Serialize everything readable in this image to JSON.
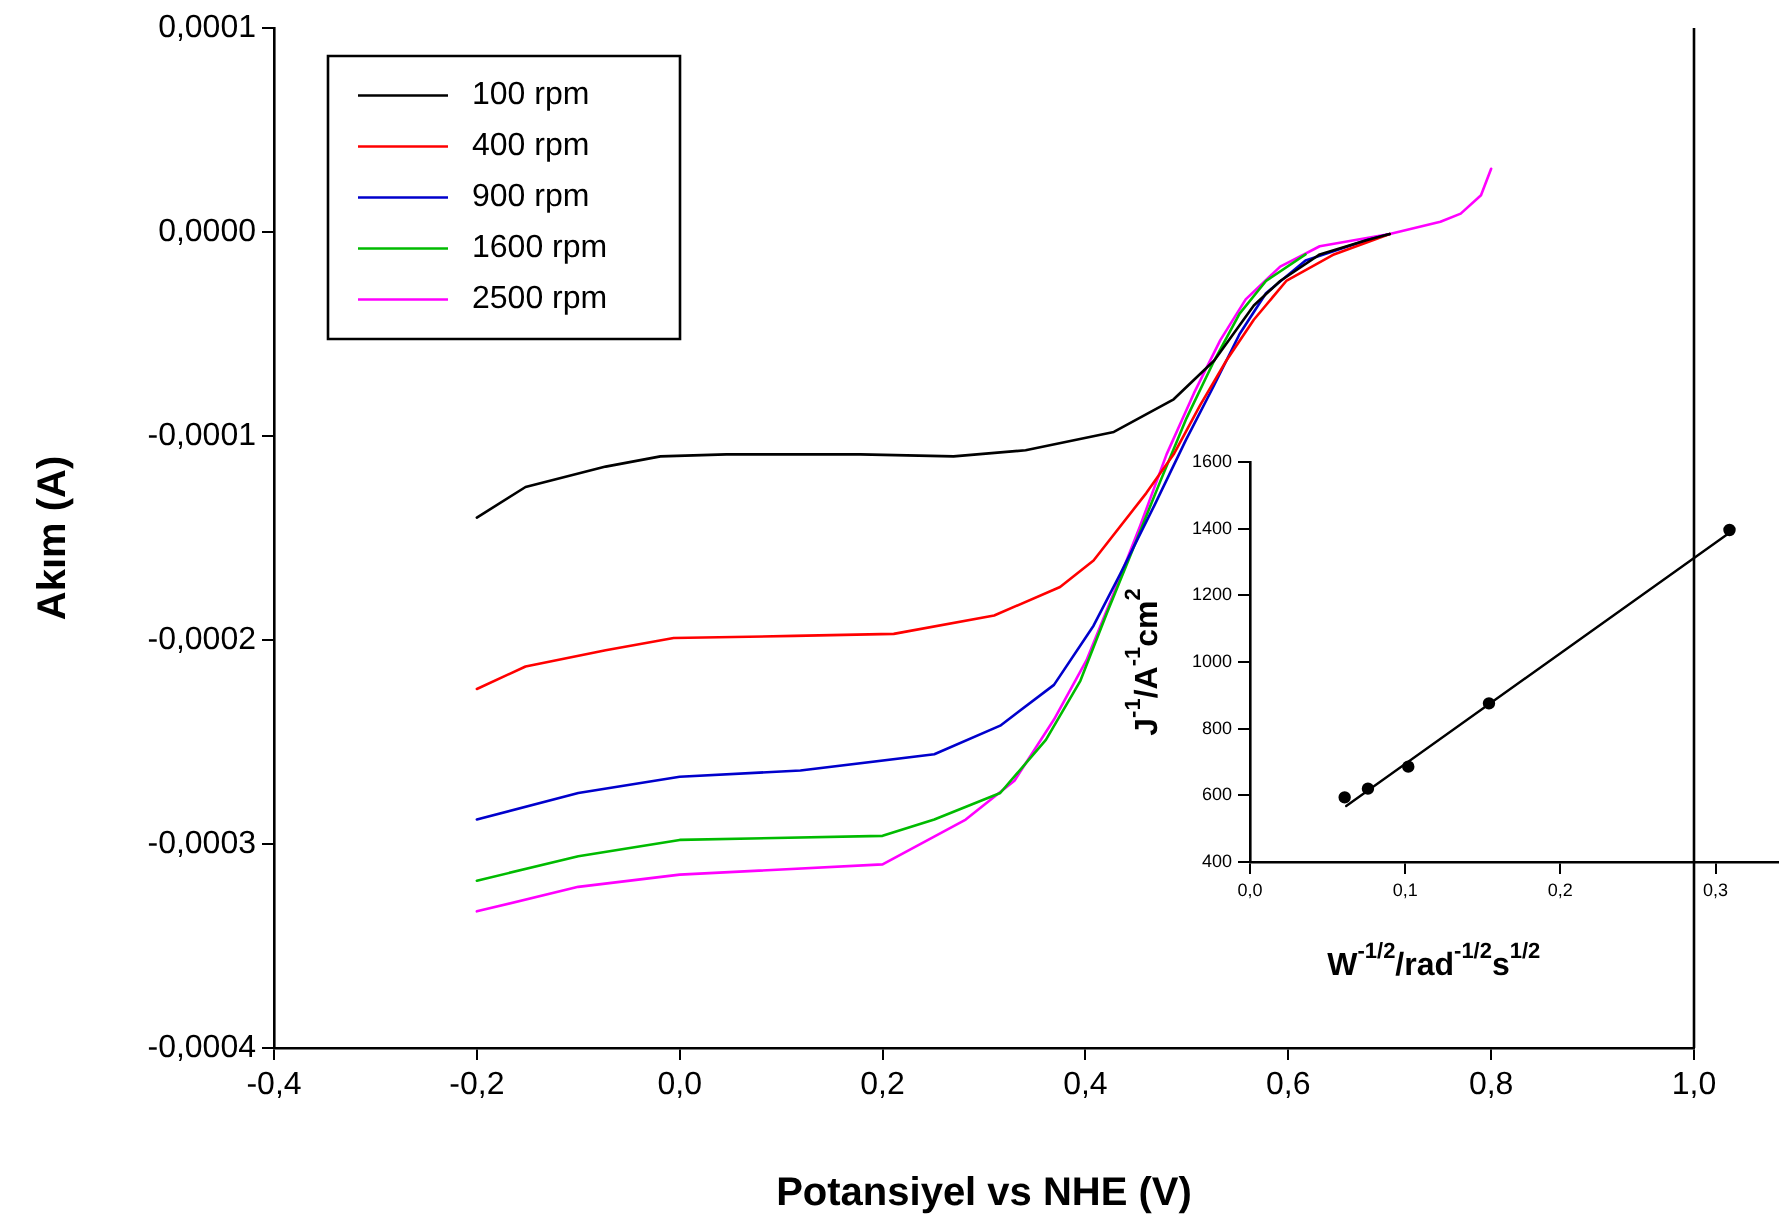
{
  "chart_data": [
    {
      "type": "line",
      "xlabel": "Potansiyel vs NHE (V)",
      "ylabel": "Akım (A)",
      "marker": "none",
      "legend": "top left",
      "xlim": [
        -0.4,
        1.0
      ],
      "xticks": [
        {
          "value": -0.4,
          "label": "-0,4"
        },
        {
          "value": -0.2,
          "label": "-0,2"
        },
        {
          "value": 0,
          "label": "0,0"
        },
        {
          "value": 0.2,
          "label": "0,2"
        },
        {
          "value": 0.4,
          "label": "0,4"
        },
        {
          "value": 0.6,
          "label": "0,6"
        },
        {
          "value": 0.8,
          "label": "0,8"
        },
        {
          "value": 1.0,
          "label": "1,0"
        }
      ],
      "ylim": [
        -0.0004,
        0.0001
      ],
      "yticks": [
        {
          "value": -0.0004,
          "label": "-0,0004"
        },
        {
          "value": -0.0003,
          "label": "-0,0003"
        },
        {
          "value": -0.0002,
          "label": "-0,0002"
        },
        {
          "value": -0.0001,
          "label": "-0,0001"
        },
        {
          "value": 0,
          "label": "0,0000"
        },
        {
          "value": 0.0001,
          "label": "0,0001"
        }
      ],
      "series": [
        {
          "name": "100 rpm",
          "color": "#000000",
          "x": [
            -0.2,
            -0.152,
            -0.073,
            -0.019,
            0.046,
            0.178,
            0.27,
            0.341,
            0.428,
            0.487,
            0.527,
            0.566,
            0.592,
            0.631,
            0.677,
            0.7
          ],
          "values": [
            -0.00014,
            -0.000125,
            -0.000115,
            -0.00011,
            -0.000109,
            -0.000109,
            -0.00011,
            -0.000107,
            -9.8e-05,
            -8.2e-05,
            -6.3e-05,
            -3.6e-05,
            -2.4e-05,
            -1.1e-05,
            -4e-06,
            -1e-06
          ]
        },
        {
          "name": "400 rpm",
          "color": "#ff0000",
          "x": [
            -0.2,
            -0.152,
            -0.073,
            -0.006,
            0.113,
            0.211,
            0.31,
            0.375,
            0.408,
            0.46,
            0.487,
            0.513,
            0.539,
            0.566,
            0.598,
            0.645,
            0.7
          ],
          "values": [
            -0.000224,
            -0.000213,
            -0.000205,
            -0.000199,
            -0.000198,
            -0.000197,
            -0.000188,
            -0.000174,
            -0.000161,
            -0.000128,
            -0.000109,
            -8.5e-05,
            -6.3e-05,
            -4.3e-05,
            -2.4e-05,
            -1.1e-05,
            -1e-06
          ]
        },
        {
          "name": "900 rpm",
          "color": "#0000cc",
          "x": [
            -0.2,
            -0.1,
            0,
            0.119,
            0.251,
            0.316,
            0.369,
            0.408,
            0.434,
            0.468,
            0.499,
            0.527,
            0.552,
            0.578,
            0.617,
            0.677,
            0.7
          ],
          "values": [
            -0.000288,
            -0.000275,
            -0.000267,
            -0.000264,
            -0.000256,
            -0.000242,
            -0.000222,
            -0.000193,
            -0.000168,
            -0.000134,
            -0.000102,
            -7.5e-05,
            -5e-05,
            -3e-05,
            -1.4e-05,
            -4e-06,
            -1e-06
          ]
        },
        {
          "name": "1600 rpm",
          "color": "#00bb00",
          "x": [
            -0.2,
            -0.1,
            0,
            0.2,
            0.251,
            0.316,
            0.361,
            0.395,
            0.421,
            0.448,
            0.474,
            0.499,
            0.527,
            0.552,
            0.578,
            0.617
          ],
          "values": [
            -0.000318,
            -0.000306,
            -0.000298,
            -0.000296,
            -0.000288,
            -0.000275,
            -0.000249,
            -0.00022,
            -0.000187,
            -0.000154,
            -0.000122,
            -9.2e-05,
            -6.3e-05,
            -4e-05,
            -2.4e-05,
            -1.1e-05
          ]
        },
        {
          "name": "2500 rpm",
          "color": "#ff00ff",
          "x": [
            -0.2,
            -0.1,
            0,
            0.2,
            0.282,
            0.33,
            0.369,
            0.401,
            0.428,
            0.454,
            0.48,
            0.507,
            0.533,
            0.558,
            0.592,
            0.631,
            0.7,
            0.75,
            0.77,
            0.79,
            0.8
          ],
          "values": [
            -0.000333,
            -0.000321,
            -0.000315,
            -0.00031,
            -0.000288,
            -0.000269,
            -0.000239,
            -0.00021,
            -0.000177,
            -0.000144,
            -0.000109,
            -7.9e-05,
            -5.3e-05,
            -3.3e-05,
            -1.7e-05,
            -7e-06,
            -1e-06,
            5e-06,
            9e-06,
            1.8e-05,
            3.1e-05
          ]
        }
      ]
    },
    {
      "type": "scatter",
      "xlabel": "W$^{-1/2}$/rad$^{-1/2}$s$^{1/2}$",
      "ylabel": "J$^{-1}$/A$^{-1}$cm$^{2}$",
      "marker": "circle",
      "xlim": [
        0,
        0.34
      ],
      "xticks": [
        {
          "value": 0,
          "label": "0,0"
        },
        {
          "value": 0.1,
          "label": "0,1"
        },
        {
          "value": 0.2,
          "label": "0,2"
        },
        {
          "value": 0.3,
          "label": "0,3"
        }
      ],
      "ylim": [
        400,
        1600
      ],
      "yticks": [
        400,
        600,
        800,
        1000,
        1200,
        1400,
        1600
      ],
      "series": [
        {
          "color": "#000000",
          "x": [
            0.061,
            0.076,
            0.102,
            0.154,
            0.309
          ],
          "values": [
            594,
            620,
            686,
            876,
            1396
          ]
        },
        {
          "type": "line",
          "marker": "none",
          "color": "#000000",
          "x": [
            0.062,
            0.309
          ],
          "values": [
            568,
            1388
          ]
        }
      ]
    }
  ]
}
